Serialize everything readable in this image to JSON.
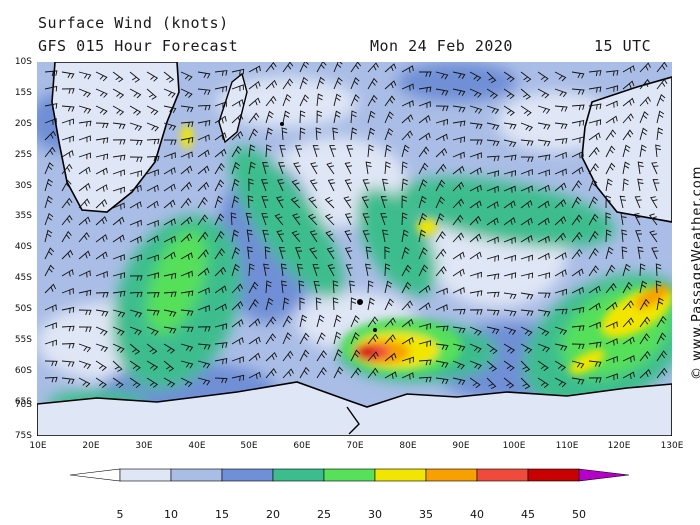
{
  "title": "Surface Wind (knots)",
  "subtitle": "GFS 015 Hour Forecast",
  "date": "Mon 24 Feb 2020",
  "time": "15 UTC",
  "credit": "© www.PassageWeather.com",
  "lat_labels": [
    "10S",
    "15S",
    "20S",
    "25S",
    "30S",
    "35S",
    "40S",
    "45S",
    "50S",
    "55S",
    "60S",
    "65S",
    "70S",
    "75S"
  ],
  "lon_labels": [
    "10E",
    "20E",
    "30E",
    "40E",
    "50E",
    "60E",
    "70E",
    "80E",
    "90E",
    "100E",
    "110E",
    "120E",
    "130E"
  ],
  "colorbar": {
    "labels": [
      "5",
      "10",
      "15",
      "20",
      "25",
      "30",
      "35",
      "40",
      "45",
      "50"
    ],
    "colors": [
      "#ffffff",
      "#dfe6f5",
      "#aabde6",
      "#6f8fd6",
      "#3cbd8e",
      "#57e05a",
      "#f2e600",
      "#f7a000",
      "#f04a3c",
      "#c80000",
      "#b400c8"
    ]
  }
}
